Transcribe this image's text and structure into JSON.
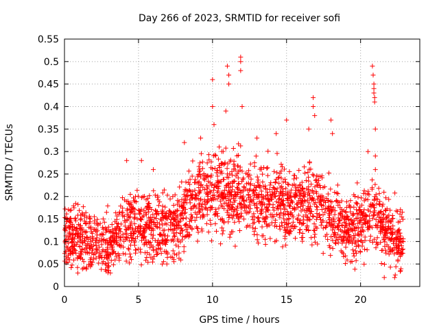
{
  "chart_data": {
    "type": "scatter",
    "title": "Day 266 of 2023, SRMTID for receiver sofi",
    "xlabel": "GPS time / hours",
    "ylabel": "SRMTID / TECUs",
    "xlim": [
      0,
      24
    ],
    "ylim": [
      0,
      0.55
    ],
    "xticks": [
      0,
      5,
      10,
      15,
      20
    ],
    "yticks": [
      0,
      0.05,
      0.1,
      0.15,
      0.2,
      0.25,
      0.3,
      0.35,
      0.4,
      0.45,
      0.5,
      0.55
    ],
    "grid": true,
    "marker": "+",
    "color": "#ff0000",
    "series": [
      {
        "name": "SRMTID",
        "x_range": [
          0,
          22.9
        ],
        "trend": [
          {
            "x": 0,
            "y": 0.11
          },
          {
            "x": 1,
            "y": 0.11
          },
          {
            "x": 2,
            "y": 0.1
          },
          {
            "x": 3,
            "y": 0.09
          },
          {
            "x": 4,
            "y": 0.13
          },
          {
            "x": 5,
            "y": 0.15
          },
          {
            "x": 6,
            "y": 0.13
          },
          {
            "x": 7,
            "y": 0.13
          },
          {
            "x": 8,
            "y": 0.16
          },
          {
            "x": 9,
            "y": 0.2
          },
          {
            "x": 10,
            "y": 0.22
          },
          {
            "x": 11,
            "y": 0.21
          },
          {
            "x": 12,
            "y": 0.2
          },
          {
            "x": 13,
            "y": 0.19
          },
          {
            "x": 14,
            "y": 0.19
          },
          {
            "x": 15,
            "y": 0.18
          },
          {
            "x": 16,
            "y": 0.18
          },
          {
            "x": 17,
            "y": 0.19
          },
          {
            "x": 18,
            "y": 0.15
          },
          {
            "x": 19,
            "y": 0.12
          },
          {
            "x": 20,
            "y": 0.14
          },
          {
            "x": 21,
            "y": 0.16
          },
          {
            "x": 22,
            "y": 0.11
          },
          {
            "x": 22.9,
            "y": 0.1
          }
        ],
        "spread": 0.06,
        "outliers": [
          {
            "x": 10.0,
            "y": 0.46
          },
          {
            "x": 10.0,
            "y": 0.4
          },
          {
            "x": 10.1,
            "y": 0.36
          },
          {
            "x": 11.0,
            "y": 0.49
          },
          {
            "x": 11.1,
            "y": 0.47
          },
          {
            "x": 11.1,
            "y": 0.45
          },
          {
            "x": 10.9,
            "y": 0.39
          },
          {
            "x": 11.9,
            "y": 0.51
          },
          {
            "x": 11.9,
            "y": 0.5
          },
          {
            "x": 11.9,
            "y": 0.48
          },
          {
            "x": 12.0,
            "y": 0.4
          },
          {
            "x": 15.0,
            "y": 0.37
          },
          {
            "x": 16.8,
            "y": 0.42
          },
          {
            "x": 16.8,
            "y": 0.4
          },
          {
            "x": 16.5,
            "y": 0.35
          },
          {
            "x": 16.9,
            "y": 0.38
          },
          {
            "x": 18.0,
            "y": 0.37
          },
          {
            "x": 18.1,
            "y": 0.34
          },
          {
            "x": 20.8,
            "y": 0.49
          },
          {
            "x": 20.85,
            "y": 0.47
          },
          {
            "x": 20.9,
            "y": 0.45
          },
          {
            "x": 20.9,
            "y": 0.44
          },
          {
            "x": 20.9,
            "y": 0.43
          },
          {
            "x": 20.95,
            "y": 0.42
          },
          {
            "x": 20.95,
            "y": 0.41
          },
          {
            "x": 21.0,
            "y": 0.35
          },
          {
            "x": 20.5,
            "y": 0.3
          },
          {
            "x": 21.0,
            "y": 0.29
          },
          {
            "x": 21.0,
            "y": 0.26
          },
          {
            "x": 4.2,
            "y": 0.28
          },
          {
            "x": 5.2,
            "y": 0.28
          },
          {
            "x": 6.0,
            "y": 0.26
          },
          {
            "x": 8.1,
            "y": 0.32
          },
          {
            "x": 9.2,
            "y": 0.33
          },
          {
            "x": 13.0,
            "y": 0.33
          },
          {
            "x": 14.3,
            "y": 0.34
          },
          {
            "x": 22.3,
            "y": 0.02
          },
          {
            "x": 21.6,
            "y": 0.02
          },
          {
            "x": 3.1,
            "y": 0.03
          },
          {
            "x": 0.9,
            "y": 0.03
          }
        ]
      }
    ]
  }
}
